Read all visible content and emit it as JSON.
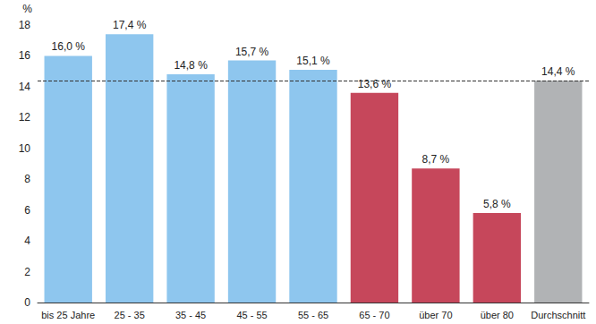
{
  "chart_data": {
    "type": "bar",
    "y_label": "%",
    "categories": [
      "bis 25 Jahre",
      "25 - 35",
      "35 - 45",
      "45 - 55",
      "55 - 65",
      "65 - 70",
      "über 70",
      "über 80",
      "Durchschnitt"
    ],
    "values": [
      16.0,
      17.4,
      14.8,
      15.7,
      15.1,
      13.6,
      8.7,
      5.8,
      14.4
    ],
    "value_labels": [
      "16,0 %",
      "17,4 %",
      "14,8 %",
      "15,7 %",
      "15,1 %",
      "13,6 %",
      "8,7 %",
      "5,8 %",
      "14,4 %"
    ],
    "colors": [
      "#8ec6ee",
      "#8ec6ee",
      "#8ec6ee",
      "#8ec6ee",
      "#8ec6ee",
      "#c6475b",
      "#c6475b",
      "#c6475b",
      "#b1b3b5"
    ],
    "reference_line": 14.4,
    "ylim": [
      0,
      18
    ],
    "yticks": [
      0,
      2,
      4,
      6,
      8,
      10,
      12,
      14,
      16,
      18
    ],
    "grid": false,
    "data_labels": true
  }
}
